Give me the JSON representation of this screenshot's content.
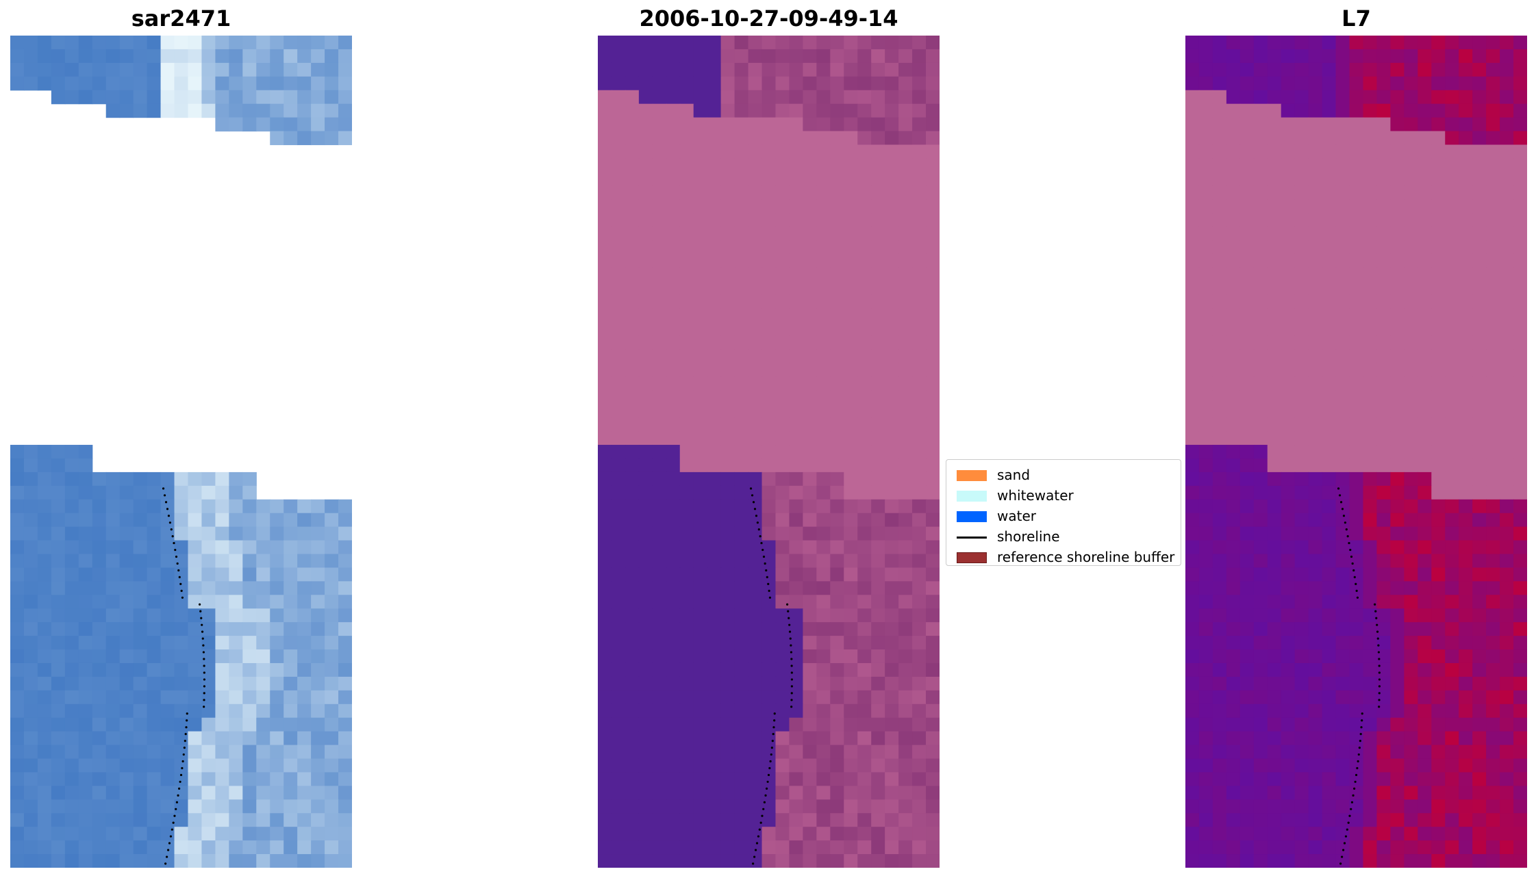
{
  "panels": [
    {
      "title": "sar2471",
      "kind": "rgb"
    },
    {
      "title": "2006-10-27-09-49-14",
      "kind": "classified"
    },
    {
      "title": "L7",
      "kind": "index"
    }
  ],
  "legend": {
    "items": [
      {
        "label": "sand",
        "type": "patch",
        "color": "#ff8c3c"
      },
      {
        "label": "whitewater",
        "type": "patch",
        "color": "#c8fafa"
      },
      {
        "label": "water",
        "type": "patch",
        "color": "#0064ff"
      },
      {
        "label": "shoreline",
        "type": "line",
        "color": "#000000"
      },
      {
        "label": "reference shoreline buffer",
        "type": "patch",
        "color": "#9b3030"
      }
    ]
  },
  "colors": {
    "nodata": "#bc6696",
    "water_class": "#542295",
    "shoreline_dots": "#000000",
    "rgb_water": "#3e76c2",
    "rgb_bright": "#e6f4fa",
    "index_low": "#5a10a8",
    "index_high": "#c0003a"
  }
}
